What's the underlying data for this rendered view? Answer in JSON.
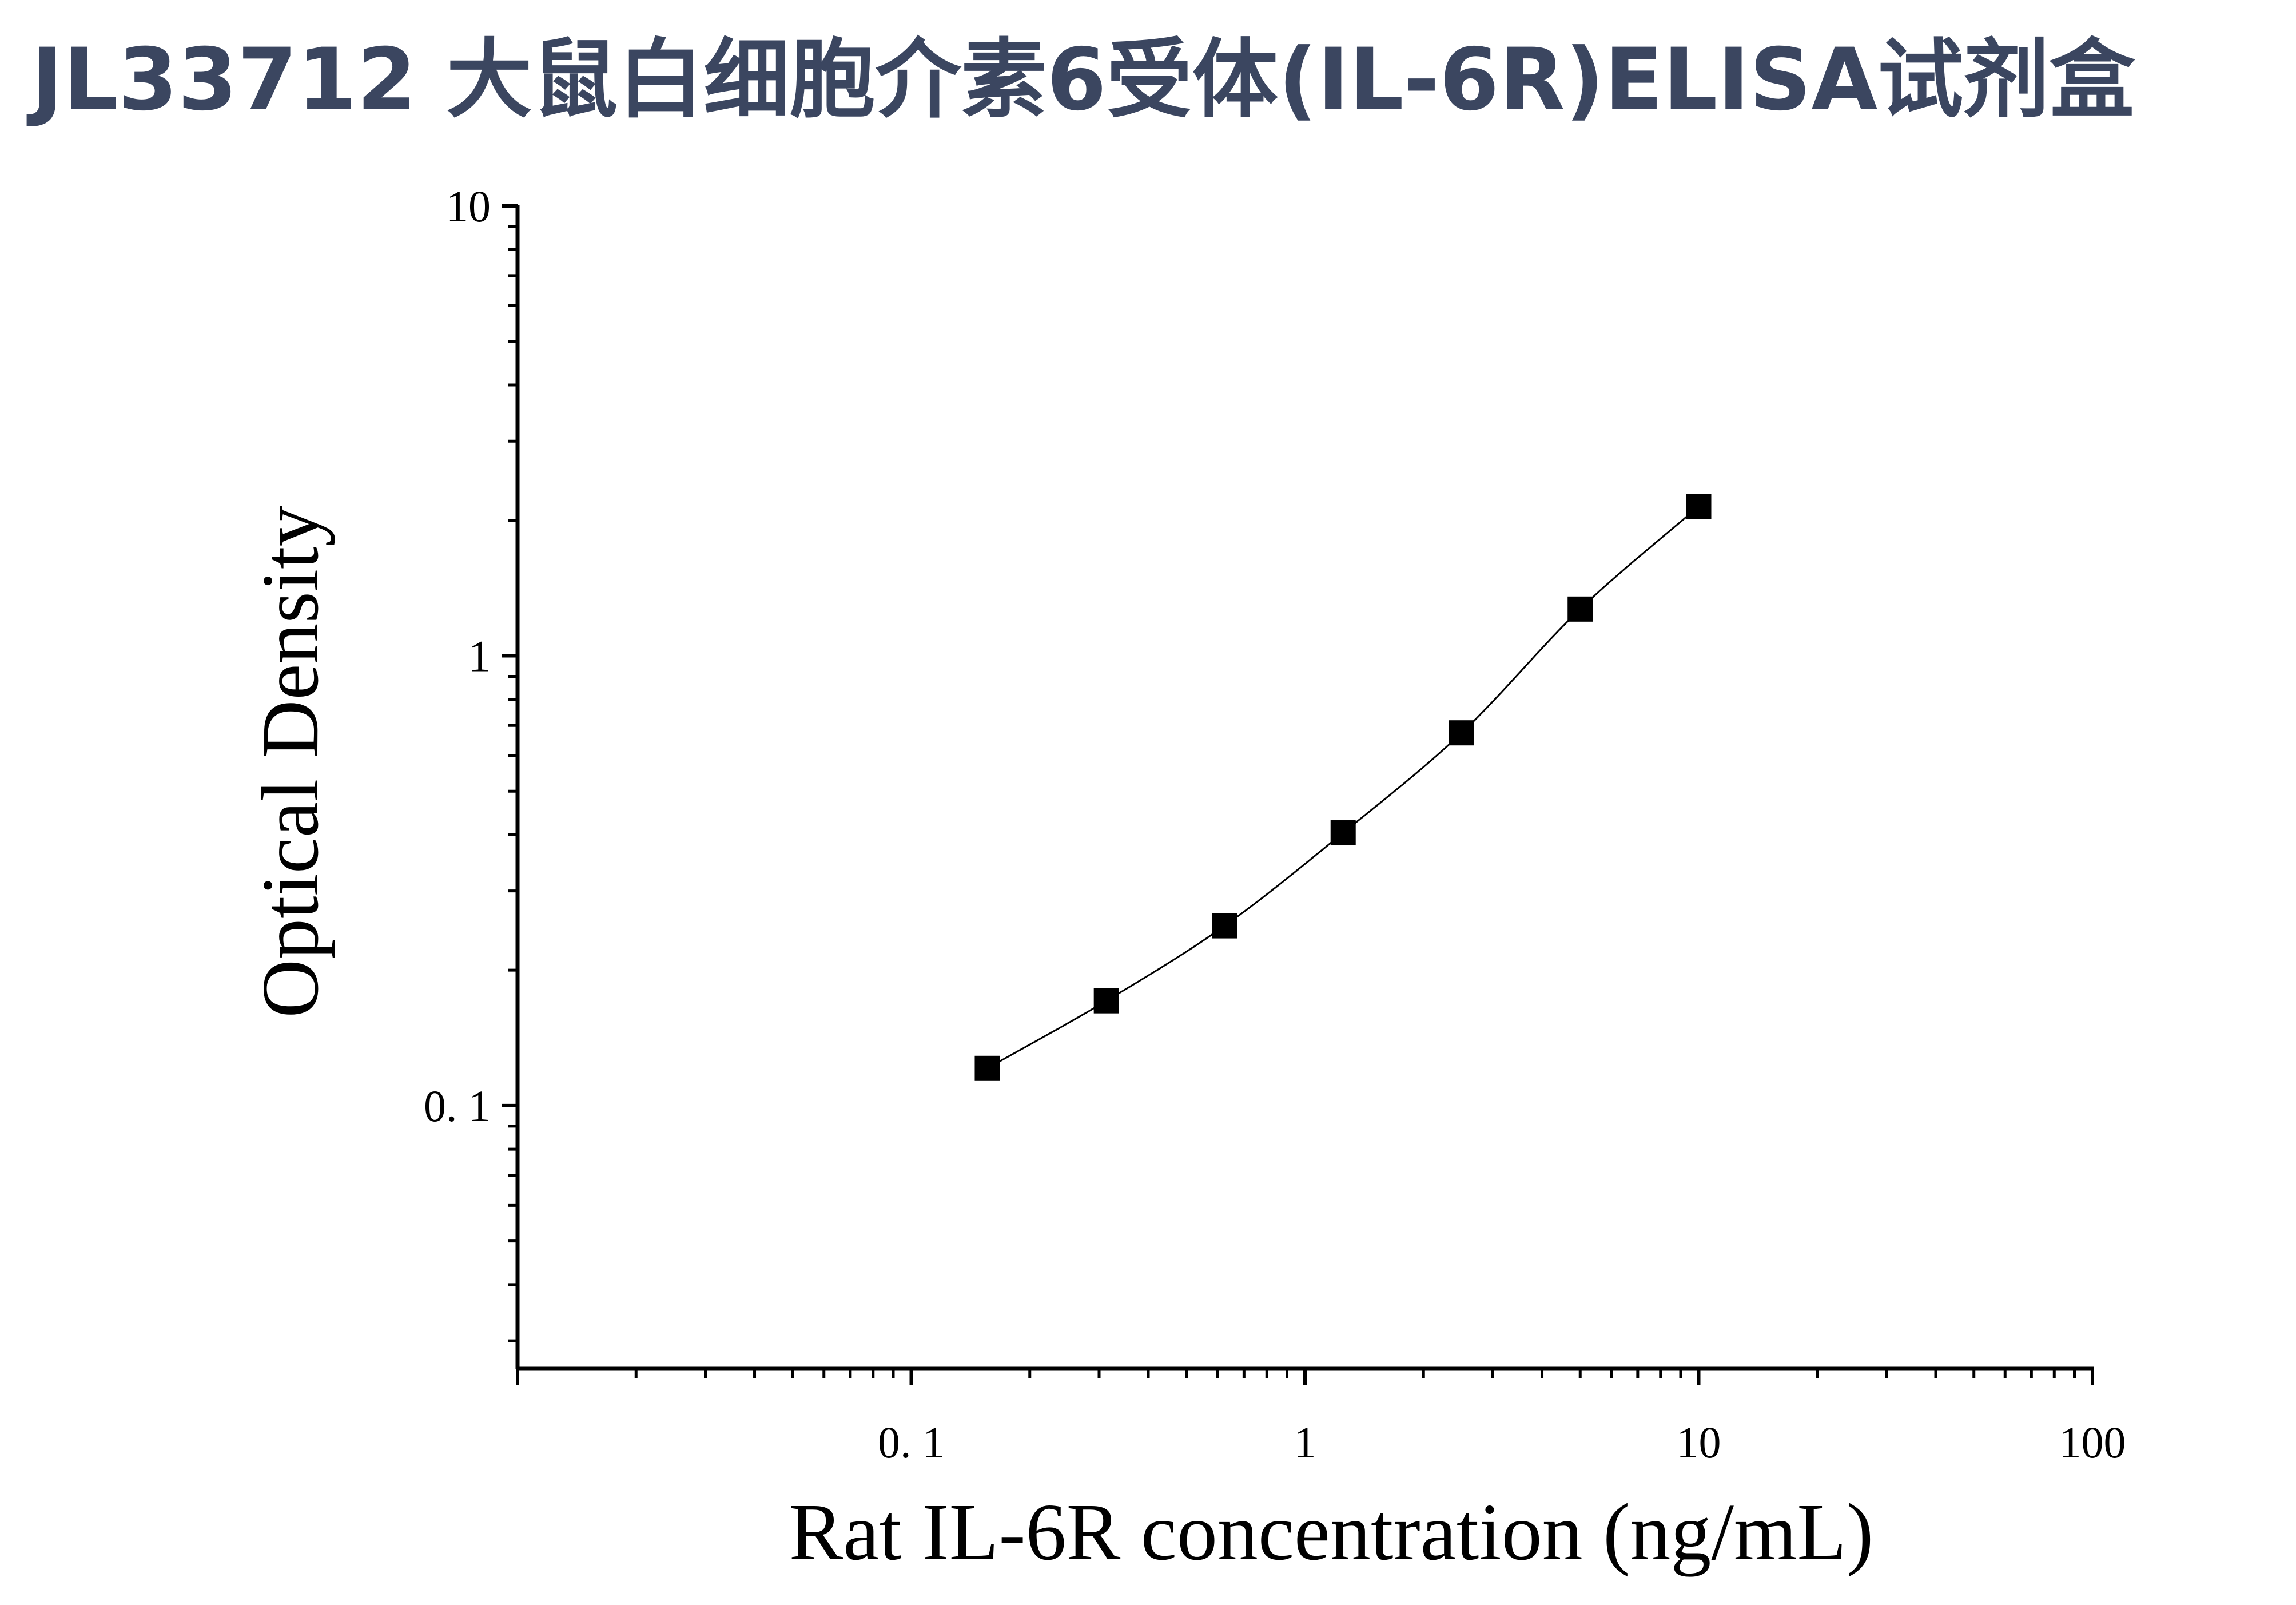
{
  "page_title": "JL33712 大鼠白细胞介素6受体(IL-6R)ELISA试剂盒",
  "chart_data": {
    "type": "scatter",
    "title": "JL33712 大鼠白细胞介素6受体(IL-6R)ELISA试剂盒",
    "xlabel": "Rat IL-6R concentration (ng/mL)",
    "ylabel": "Optical Density",
    "xscale": "log",
    "yscale": "log",
    "xlim": [
      0.01,
      100
    ],
    "ylim": [
      0.026,
      10
    ],
    "x_ticks": [
      {
        "value": 0.1,
        "label": "0. 1"
      },
      {
        "value": 1,
        "label": "1"
      },
      {
        "value": 10,
        "label": "10"
      },
      {
        "value": 100,
        "label": "100"
      }
    ],
    "y_ticks": [
      {
        "value": 0.1,
        "label": "0. 1"
      },
      {
        "value": 1,
        "label": "1"
      },
      {
        "value": 10,
        "label": "10"
      }
    ],
    "grid": false,
    "series": [
      {
        "marker": "square",
        "color": "#000000",
        "x": [
          0.156,
          0.313,
          0.625,
          1.25,
          2.5,
          5,
          10
        ],
        "y": [
          0.121,
          0.171,
          0.251,
          0.404,
          0.674,
          1.27,
          2.15
        ]
      }
    ],
    "fit_curve": {
      "x_range": [
        0.156,
        10
      ],
      "color": "#000000",
      "style": "solid"
    }
  }
}
